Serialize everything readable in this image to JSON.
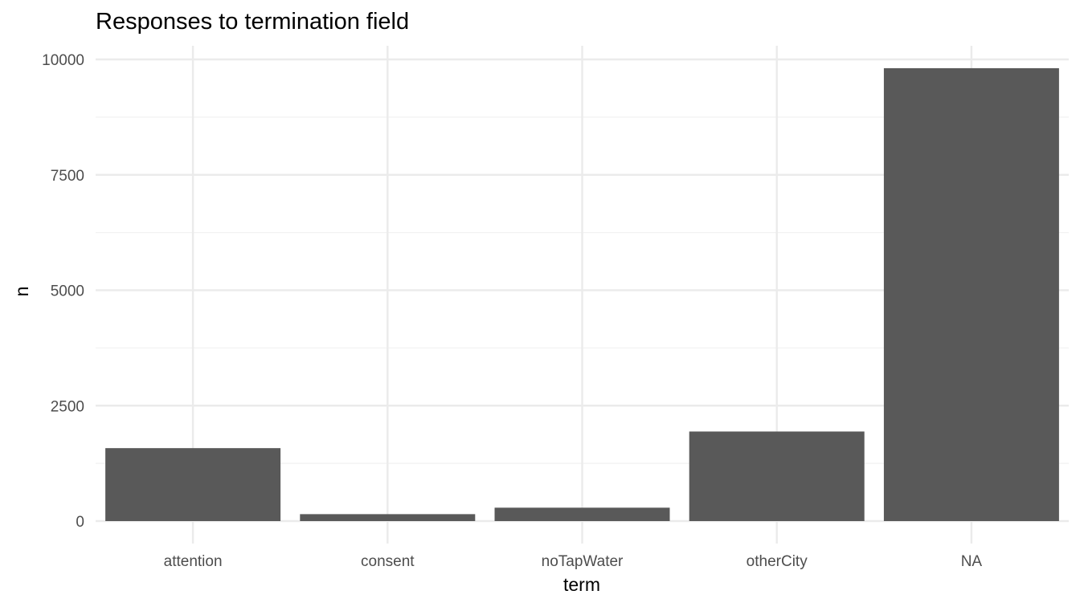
{
  "chart_data": {
    "type": "bar",
    "title": "Responses to termination field",
    "xlabel": "term",
    "ylabel": "n",
    "categories": [
      "attention",
      "consent",
      "noTapWater",
      "otherCity",
      "NA"
    ],
    "values": [
      1580,
      150,
      290,
      1940,
      9810
    ],
    "ylim": [
      0,
      10000
    ],
    "yticks": [
      0,
      2500,
      5000,
      7500,
      10000
    ],
    "ytick_labels": [
      "0",
      "2500",
      "5000",
      "7500",
      "10000"
    ],
    "grid": true,
    "legend": "none",
    "colors": {
      "bar": "#595959",
      "grid_major": "#ebebeb",
      "grid_minor": "#f2f2f2",
      "tick_text": "#4d4d4d",
      "title_text": "#000000",
      "axis_title_text": "#000000"
    }
  }
}
